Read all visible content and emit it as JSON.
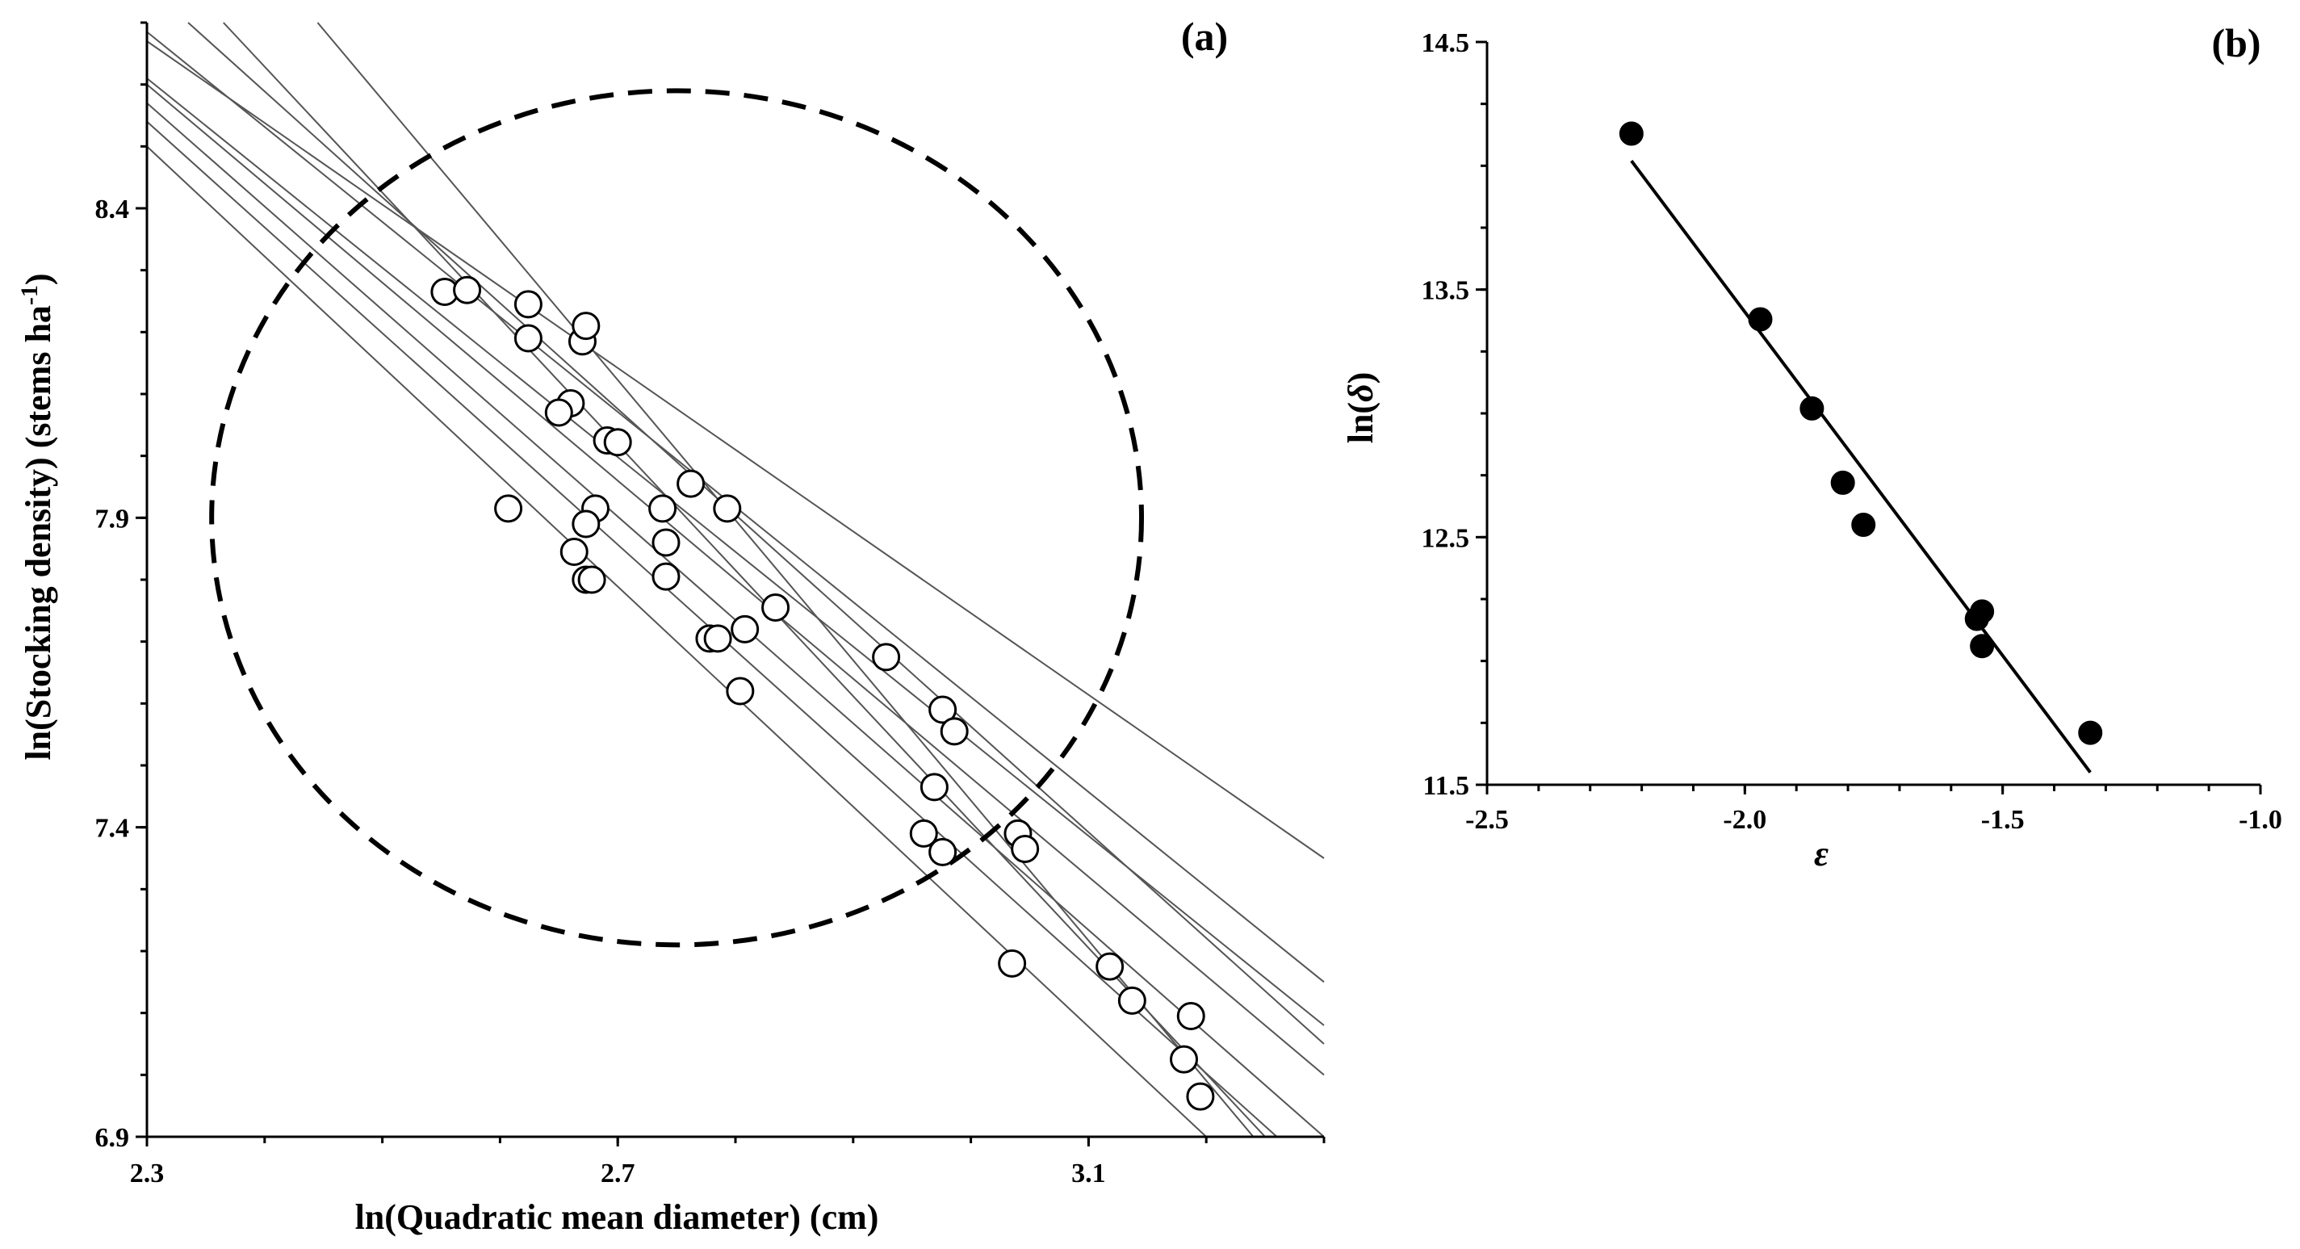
{
  "chart_data": [
    {
      "type": "scatter",
      "panel_label": "(a)",
      "xlabel": "ln(Quadratic mean diameter) (cm)",
      "ylabel_main": "ln(Stocking density) (stems ha",
      "ylabel_sup": "-1",
      "ylabel_end": ")",
      "xlim": [
        2.3,
        3.3
      ],
      "ylim": [
        6.9,
        8.7
      ],
      "xticks": [
        2.3,
        2.7,
        3.1
      ],
      "xtick_labels": [
        "2.3",
        "2.7",
        "3.1"
      ],
      "yticks": [
        6.9,
        7.4,
        7.9,
        8.4
      ],
      "ytick_labels": [
        "6.9",
        "7.4",
        "7.9",
        "8.4"
      ],
      "points": [
        {
          "x": 2.553,
          "y": 8.265
        },
        {
          "x": 2.572,
          "y": 8.268
        },
        {
          "x": 2.624,
          "y": 8.245
        },
        {
          "x": 2.624,
          "y": 8.19
        },
        {
          "x": 2.67,
          "y": 8.185
        },
        {
          "x": 2.673,
          "y": 8.21
        },
        {
          "x": 2.66,
          "y": 8.085
        },
        {
          "x": 2.65,
          "y": 8.07
        },
        {
          "x": 2.691,
          "y": 8.025
        },
        {
          "x": 2.7,
          "y": 8.022
        },
        {
          "x": 2.607,
          "y": 7.915
        },
        {
          "x": 2.681,
          "y": 7.915
        },
        {
          "x": 2.673,
          "y": 7.89
        },
        {
          "x": 2.663,
          "y": 7.845
        },
        {
          "x": 2.673,
          "y": 7.8
        },
        {
          "x": 2.678,
          "y": 7.8
        },
        {
          "x": 2.738,
          "y": 7.915
        },
        {
          "x": 2.741,
          "y": 7.86
        },
        {
          "x": 2.741,
          "y": 7.805
        },
        {
          "x": 2.762,
          "y": 7.955
        },
        {
          "x": 2.793,
          "y": 7.915
        },
        {
          "x": 2.778,
          "y": 7.705
        },
        {
          "x": 2.785,
          "y": 7.705
        },
        {
          "x": 2.808,
          "y": 7.72
        },
        {
          "x": 2.834,
          "y": 7.755
        },
        {
          "x": 2.804,
          "y": 7.62
        },
        {
          "x": 2.928,
          "y": 7.675
        },
        {
          "x": 2.976,
          "y": 7.59
        },
        {
          "x": 2.986,
          "y": 7.555
        },
        {
          "x": 2.969,
          "y": 7.465
        },
        {
          "x": 2.96,
          "y": 7.39
        },
        {
          "x": 2.976,
          "y": 7.36
        },
        {
          "x": 3.04,
          "y": 7.39
        },
        {
          "x": 3.046,
          "y": 7.365
        },
        {
          "x": 3.035,
          "y": 7.18
        },
        {
          "x": 3.118,
          "y": 7.175
        },
        {
          "x": 3.137,
          "y": 7.12
        },
        {
          "x": 3.187,
          "y": 7.095
        },
        {
          "x": 3.181,
          "y": 7.025
        },
        {
          "x": 3.195,
          "y": 6.965
        }
      ],
      "lines": [
        {
          "x1": 2.3,
          "y1": 8.67,
          "x2": 3.3,
          "y2": 7.35
        },
        {
          "x1": 2.3,
          "y1": 8.685,
          "x2": 3.3,
          "y2": 7.15
        },
        {
          "x1": 2.3,
          "y1": 8.61,
          "x2": 3.3,
          "y2": 7.08
        },
        {
          "x1": 2.3,
          "y1": 8.6,
          "x2": 3.3,
          "y2": 7.0
        },
        {
          "x1": 2.3,
          "y1": 8.57,
          "x2": 3.3,
          "y2": 6.9
        },
        {
          "x1": 2.3,
          "y1": 8.54,
          "x2": 3.26,
          "y2": 6.9
        },
        {
          "x1": 2.3,
          "y1": 8.5,
          "x2": 3.2,
          "y2": 6.9
        },
        {
          "x1": 2.335,
          "y1": 8.7,
          "x2": 3.3,
          "y2": 7.05
        },
        {
          "x1": 2.365,
          "y1": 8.7,
          "x2": 3.25,
          "y2": 6.9
        },
        {
          "x1": 2.445,
          "y1": 8.7,
          "x2": 3.24,
          "y2": 6.9
        }
      ],
      "ellipse": {
        "cx": 2.75,
        "cy": 7.9,
        "rx": 0.395,
        "ry": 0.69
      }
    },
    {
      "type": "scatter",
      "panel_label": "(b)",
      "xlabel": "ε",
      "ylabel_pre": "ln(",
      "ylabel_sym": "δ",
      "ylabel_post": ")",
      "xlim": [
        -2.5,
        -1.0
      ],
      "ylim": [
        11.5,
        14.5
      ],
      "xticks": [
        -2.5,
        -2.0,
        -1.5,
        -1.0
      ],
      "xtick_labels": [
        "-2.5",
        "-2.0",
        "-1.5",
        "-1.0"
      ],
      "yticks": [
        11.5,
        12.5,
        13.5,
        14.5
      ],
      "ytick_labels": [
        "11.5",
        "12.5",
        "13.5",
        "14.5"
      ],
      "points": [
        {
          "x": -2.22,
          "y": 14.13
        },
        {
          "x": -1.97,
          "y": 13.38
        },
        {
          "x": -1.87,
          "y": 13.02
        },
        {
          "x": -1.81,
          "y": 12.72
        },
        {
          "x": -1.77,
          "y": 12.55
        },
        {
          "x": -1.55,
          "y": 12.17
        },
        {
          "x": -1.54,
          "y": 12.2
        },
        {
          "x": -1.54,
          "y": 12.06
        },
        {
          "x": -1.33,
          "y": 11.71
        }
      ],
      "fit": {
        "x1": -2.22,
        "y1": 14.02,
        "x2": -1.33,
        "y2": 11.55
      }
    }
  ]
}
